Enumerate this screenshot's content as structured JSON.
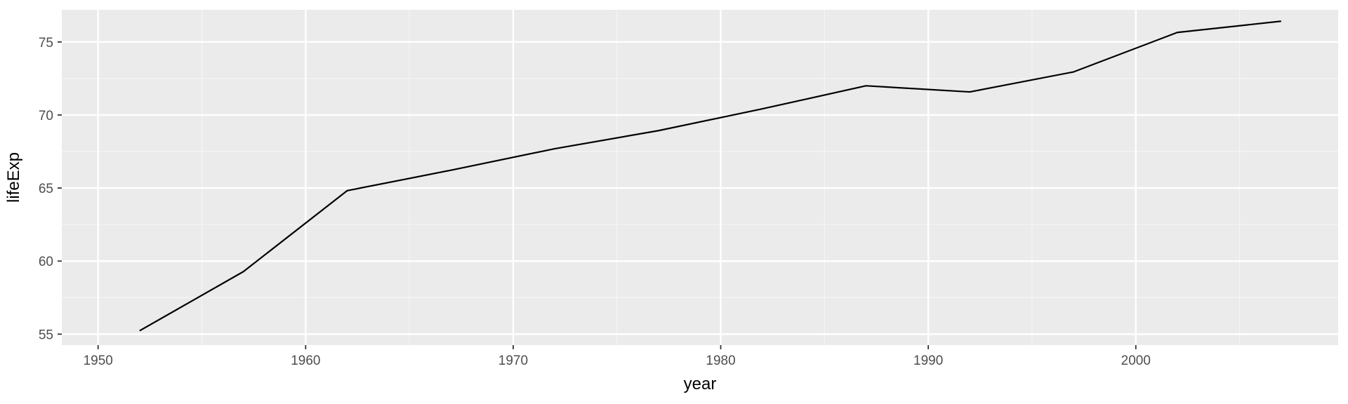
{
  "chart_data": {
    "type": "line",
    "xlabel": "year",
    "ylabel": "lifeExp",
    "xlim": [
      1948.25,
      2009.75
    ],
    "ylim": [
      54.25,
      77.2
    ],
    "x_ticks": [
      1950,
      1960,
      1970,
      1980,
      1990,
      2000
    ],
    "x_minor_ticks": [
      1955,
      1965,
      1975,
      1985,
      1995,
      2005
    ],
    "y_ticks": [
      55,
      60,
      65,
      70,
      75
    ],
    "y_minor_ticks": [
      57.5,
      62.5,
      67.5,
      72.5
    ],
    "grid": true,
    "legend": "none",
    "series": [
      {
        "x": [
          1952,
          1957,
          1962,
          1967,
          1972,
          1977,
          1982,
          1987,
          1992,
          1997,
          2002,
          2007
        ],
        "values": [
          55.23,
          59.28,
          64.82,
          66.22,
          67.69,
          68.93,
          70.42,
          72.0,
          71.58,
          72.95,
          75.65,
          76.42
        ]
      }
    ],
    "colors": {
      "panel_background": "#ebebeb",
      "grid_major": "#ffffff",
      "grid_minor": "#f5f5f5",
      "line": "#000000",
      "tick_label": "#4d4d4d",
      "axis_title": "#000000"
    }
  }
}
